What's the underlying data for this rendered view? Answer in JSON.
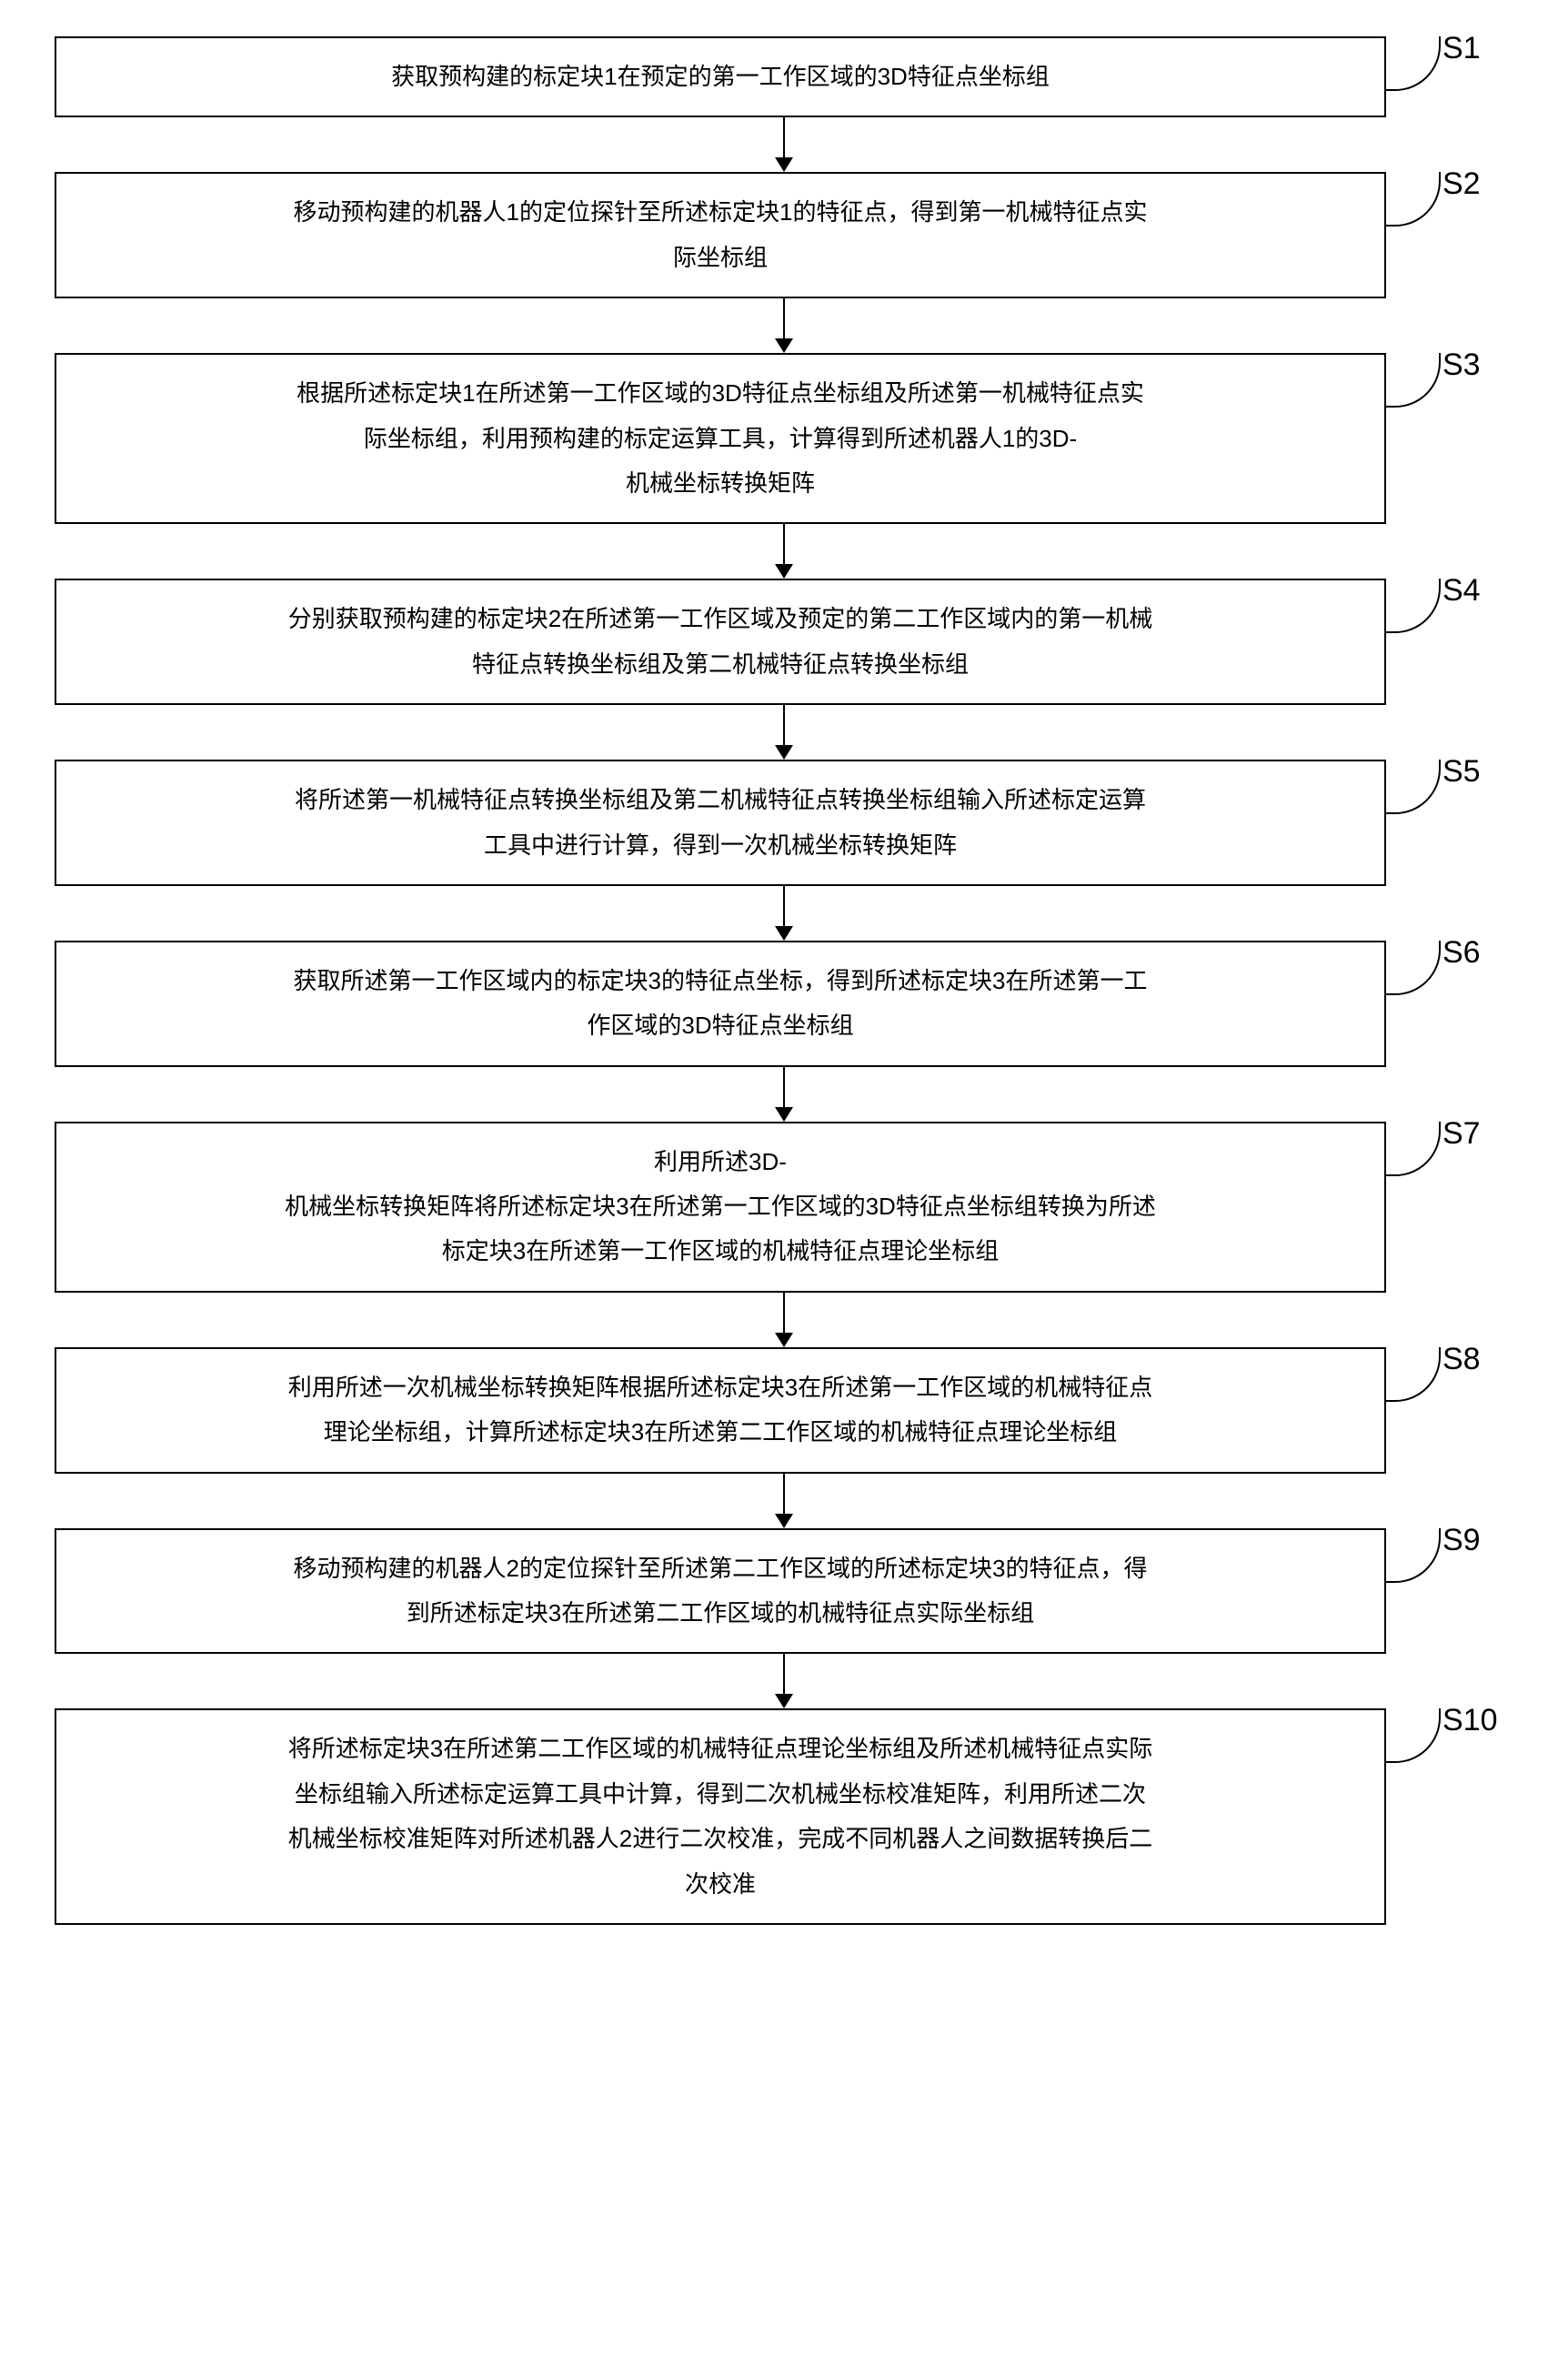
{
  "flowchart": {
    "type": "flowchart",
    "direction": "vertical",
    "node_border_color": "#000000",
    "node_border_width": 2,
    "node_background": "#ffffff",
    "node_text_color": "#000000",
    "node_font_size": 26,
    "node_line_height": 1.9,
    "label_font_size": 34,
    "label_color": "#000000",
    "arrow_color": "#000000",
    "arrow_gap_height": 60,
    "label_curve_radius": 50,
    "steps": [
      {
        "id": "S1",
        "label": "S1",
        "lines": [
          "获取预构建的标定块1在预定的第一工作区域的3D特征点坐标组"
        ]
      },
      {
        "id": "S2",
        "label": "S2",
        "lines": [
          "移动预构建的机器人1的定位探针至所述标定块1的特征点，得到第一机械特征点实",
          "际坐标组"
        ]
      },
      {
        "id": "S3",
        "label": "S3",
        "lines": [
          "根据所述标定块1在所述第一工作区域的3D特征点坐标组及所述第一机械特征点实",
          "际坐标组，利用预构建的标定运算工具，计算得到所述机器人1的3D-",
          "机械坐标转换矩阵"
        ]
      },
      {
        "id": "S4",
        "label": "S4",
        "lines": [
          "分别获取预构建的标定块2在所述第一工作区域及预定的第二工作区域内的第一机械",
          "特征点转换坐标组及第二机械特征点转换坐标组"
        ]
      },
      {
        "id": "S5",
        "label": "S5",
        "lines": [
          "将所述第一机械特征点转换坐标组及第二机械特征点转换坐标组输入所述标定运算",
          "工具中进行计算，得到一次机械坐标转换矩阵"
        ]
      },
      {
        "id": "S6",
        "label": "S6",
        "lines": [
          "获取所述第一工作区域内的标定块3的特征点坐标，得到所述标定块3在所述第一工",
          "作区域的3D特征点坐标组"
        ]
      },
      {
        "id": "S7",
        "label": "S7",
        "lines": [
          "利用所述3D-",
          "机械坐标转换矩阵将所述标定块3在所述第一工作区域的3D特征点坐标组转换为所述",
          "标定块3在所述第一工作区域的机械特征点理论坐标组"
        ]
      },
      {
        "id": "S8",
        "label": "S8",
        "lines": [
          "利用所述一次机械坐标转换矩阵根据所述标定块3在所述第一工作区域的机械特征点",
          "理论坐标组，计算所述标定块3在所述第二工作区域的机械特征点理论坐标组"
        ]
      },
      {
        "id": "S9",
        "label": "S9",
        "lines": [
          "移动预构建的机器人2的定位探针至所述第二工作区域的所述标定块3的特征点，得",
          "到所述标定块3在所述第二工作区域的机械特征点实际坐标组"
        ]
      },
      {
        "id": "S10",
        "label": "S10",
        "lines": [
          "将所述标定块3在所述第二工作区域的机械特征点理论坐标组及所述机械特征点实际",
          "坐标组输入所述标定运算工具中计算，得到二次机械坐标校准矩阵，利用所述二次",
          "机械坐标校准矩阵对所述机器人2进行二次校准，完成不同机器人之间数据转换后二",
          "次校准"
        ]
      }
    ]
  }
}
